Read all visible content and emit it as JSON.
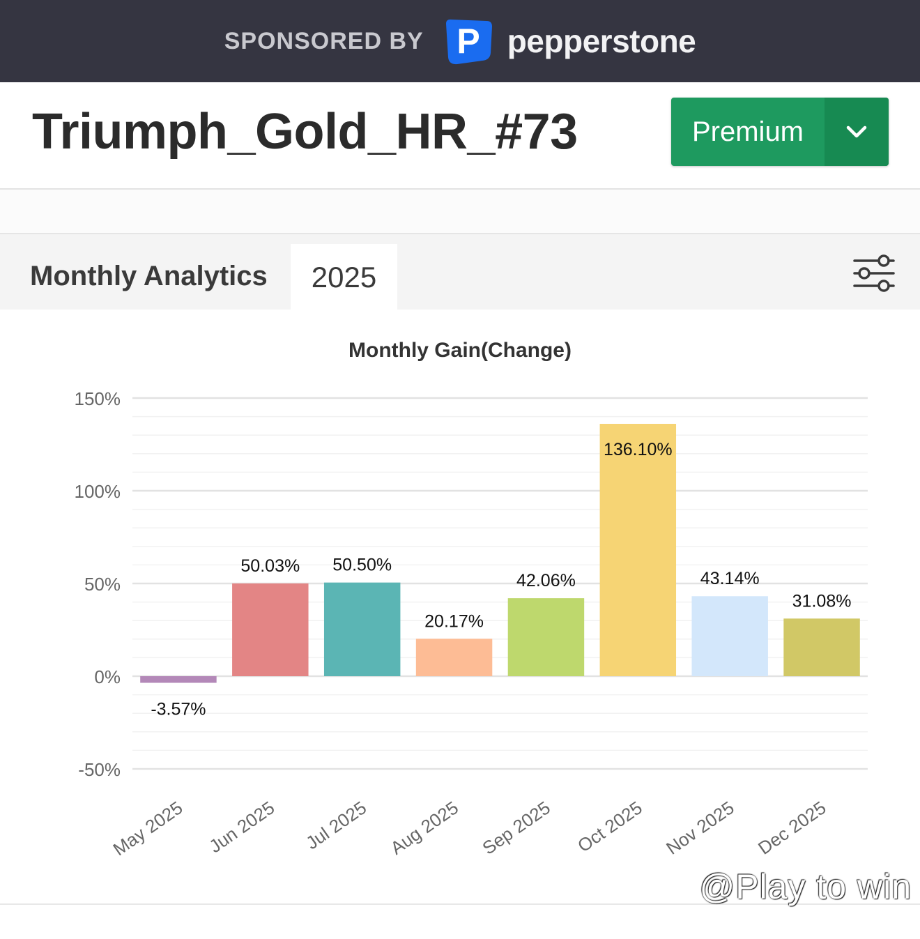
{
  "sponsor": {
    "label": "SPONSORED BY",
    "brand": "pepperstone",
    "logo_letter": "P",
    "colors": {
      "bar_bg": "#353541",
      "logo_blue": "#1a6cf0"
    }
  },
  "header": {
    "account_name": "Triumph_Gold_HR_#73",
    "plan_button": {
      "label": "Premium",
      "icon": "chevron-down-icon",
      "color": "#1e9a5f"
    }
  },
  "analytics": {
    "title": "Monthly Analytics",
    "year_tab": "2025",
    "filter_icon": "sliders-icon"
  },
  "chart_data": {
    "type": "bar",
    "title": "Monthly Gain(Change)",
    "xlabel": "",
    "ylabel": "",
    "categories": [
      "May 2025",
      "Jun 2025",
      "Jul 2025",
      "Aug 2025",
      "Sep 2025",
      "Oct 2025",
      "Nov 2025",
      "Dec 2025"
    ],
    "values": [
      -3.57,
      50.03,
      50.5,
      20.17,
      42.06,
      136.1,
      43.14,
      31.08
    ],
    "data_labels": [
      "-3.57%",
      "50.03%",
      "50.50%",
      "20.17%",
      "42.06%",
      "136.10%",
      "43.14%",
      "31.08%"
    ],
    "colors": [
      "#b388b8",
      "#e38585",
      "#5bb5b4",
      "#fdbc95",
      "#bed86d",
      "#f6d474",
      "#d3e7fb",
      "#d1c866"
    ],
    "yticks": [
      150,
      100,
      50,
      0,
      -50
    ],
    "ytick_labels": [
      "150%",
      "100%",
      "50%",
      "0%",
      "-50%"
    ],
    "ylim": [
      -50,
      150
    ],
    "grid": true,
    "legend": "none"
  },
  "watermark": "@Play to win"
}
